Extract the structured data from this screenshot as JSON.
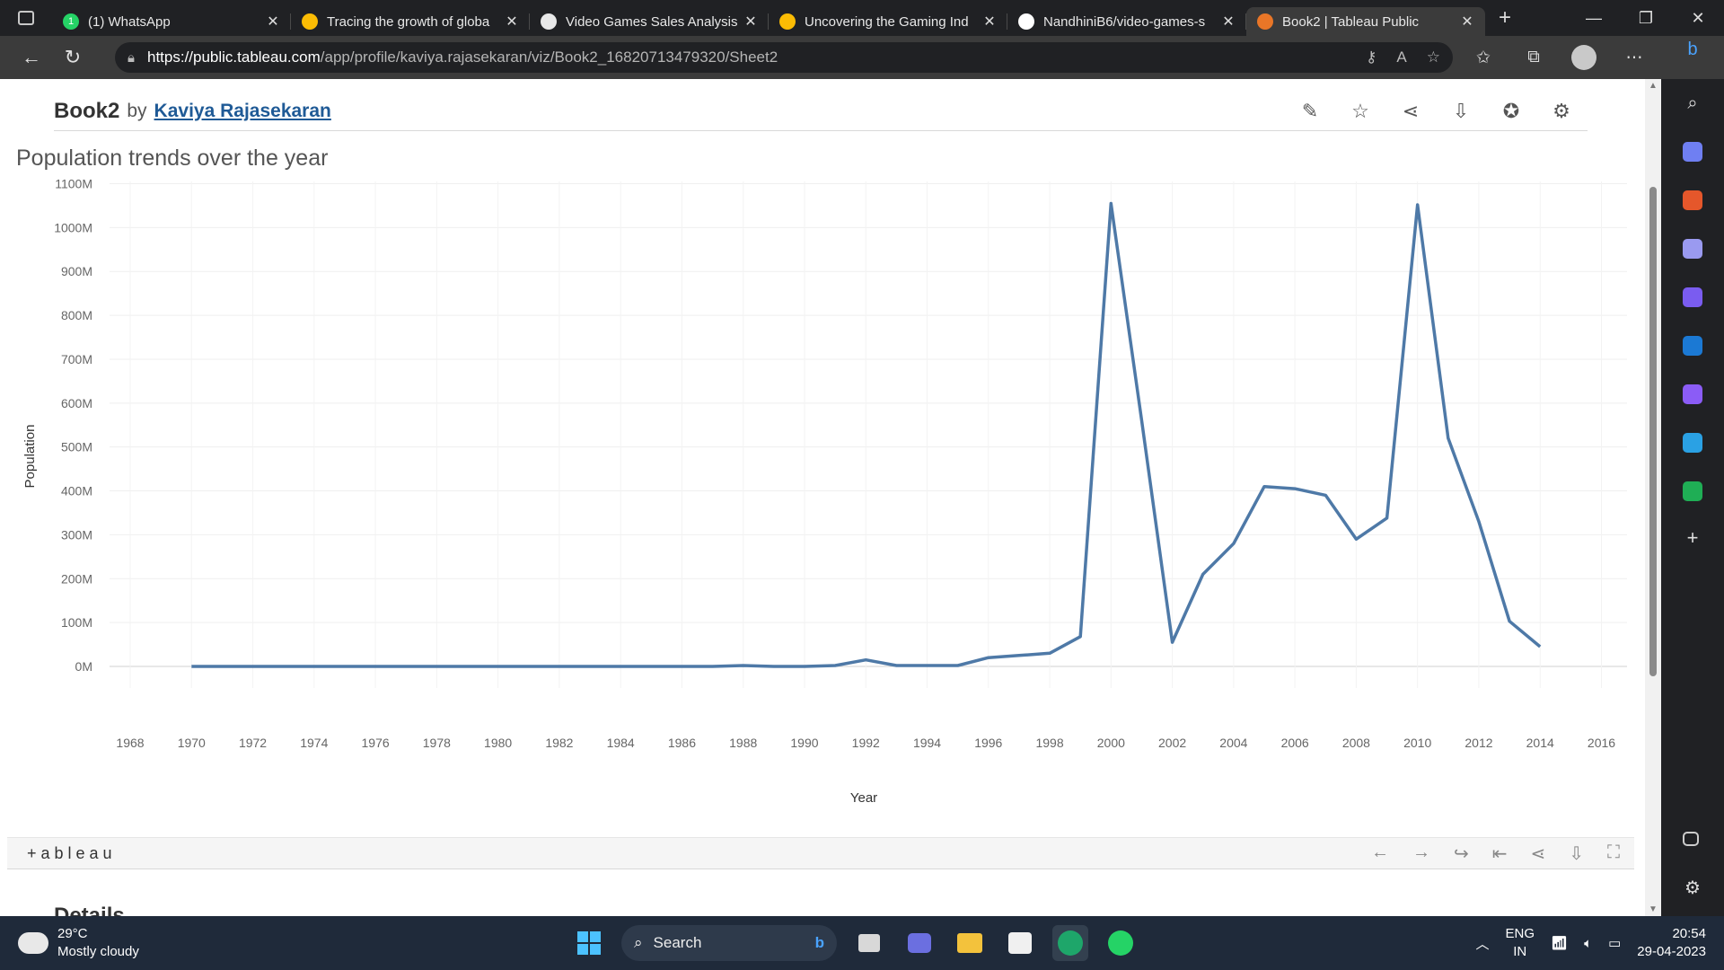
{
  "browser": {
    "tabs": [
      {
        "title": "(1) WhatsApp",
        "favicon": "whatsapp-icon",
        "color": "#25d366",
        "badge": "1"
      },
      {
        "title": "Tracing the growth of globa",
        "favicon": "google-drive-icon",
        "color": "#fbbc04"
      },
      {
        "title": "Video Games Sales Analysis",
        "favicon": "document-icon",
        "color": "#e8e8e8"
      },
      {
        "title": "Uncovering the Gaming Ind",
        "favicon": "google-drive-icon",
        "color": "#fbbc04"
      },
      {
        "title": "NandhiniB6/video-games-s",
        "favicon": "github-icon",
        "color": "#ffffff"
      },
      {
        "title": "Book2 | Tableau Public",
        "favicon": "tableau-icon",
        "color": "#e97627",
        "active": true
      }
    ],
    "url_host": "https://public.tableau.com",
    "url_path": "/app/profile/kaviya.rajasekaran/viz/Book2_16820713479320/Sheet2"
  },
  "viz": {
    "workbook": "Book2",
    "by": "by",
    "author": "Kaviya Rajasekaran",
    "title": "Population trends over the year",
    "footer_logo": "+ableau",
    "details_heading": "Details"
  },
  "chart_data": {
    "type": "line",
    "title": "Population trends over the year",
    "xlabel": "Year",
    "ylabel": "Population",
    "xlim": [
      1968,
      2016
    ],
    "ylim": [
      0,
      1100
    ],
    "x_ticks": [
      1968,
      1970,
      1972,
      1974,
      1976,
      1978,
      1980,
      1982,
      1984,
      1986,
      1988,
      1990,
      1992,
      1994,
      1996,
      1998,
      2000,
      2002,
      2004,
      2006,
      2008,
      2010,
      2012,
      2014,
      2016
    ],
    "y_ticks": [
      "0M",
      "100M",
      "200M",
      "300M",
      "400M",
      "500M",
      "600M",
      "700M",
      "800M",
      "900M",
      "1000M",
      "1100M"
    ],
    "line_color": "#4e79a7",
    "x": [
      1970,
      1971,
      1972,
      1973,
      1974,
      1975,
      1976,
      1977,
      1978,
      1979,
      1980,
      1981,
      1982,
      1983,
      1984,
      1985,
      1986,
      1987,
      1988,
      1989,
      1990,
      1991,
      1992,
      1993,
      1994,
      1995,
      1996,
      1997,
      1998,
      1999,
      2000,
      2001,
      2002,
      2003,
      2004,
      2005,
      2006,
      2007,
      2008,
      2009,
      2010,
      2011,
      2012,
      2013,
      2014
    ],
    "y": [
      0,
      0,
      0,
      0,
      0,
      0,
      0,
      0,
      0,
      0,
      0,
      0,
      0,
      0,
      0,
      0,
      0,
      0,
      2,
      0,
      0,
      2,
      15,
      2,
      2,
      2,
      20,
      25,
      30,
      68,
      1055,
      560,
      55,
      210,
      280,
      410,
      405,
      390,
      290,
      338,
      1052,
      520,
      330,
      103,
      45
    ]
  },
  "taskbar": {
    "temp": "29°C",
    "weather": "Mostly cloudy",
    "search": "Search",
    "lang1": "ENG",
    "lang2": "IN",
    "time": "20:54",
    "date": "29-04-2023"
  }
}
